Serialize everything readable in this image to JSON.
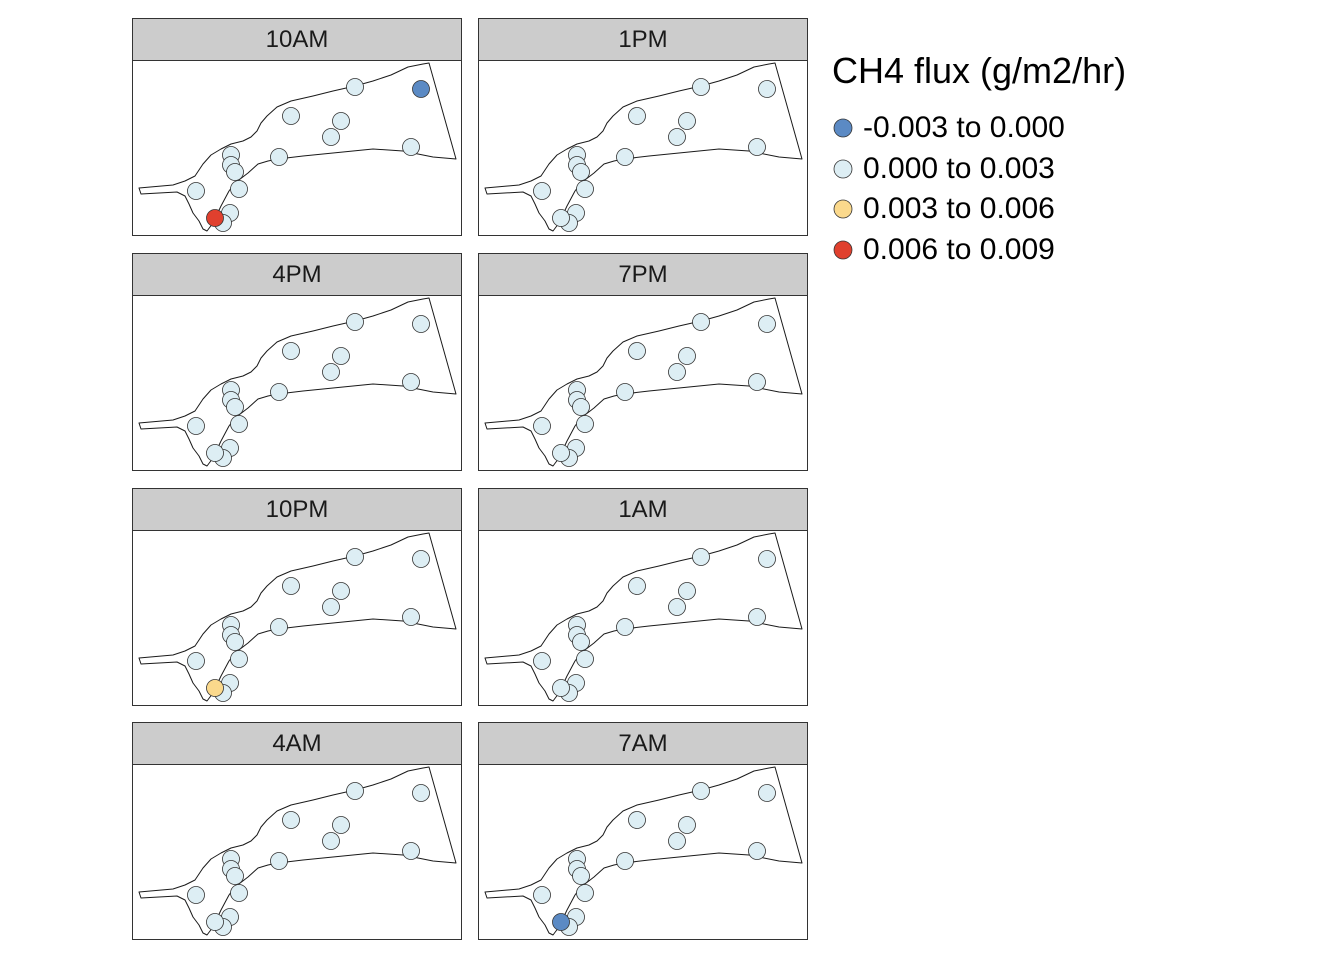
{
  "legend": {
    "title": "CH4 flux (g/m2/hr)",
    "classes": [
      {
        "label": "-0.003 to 0.000",
        "color": "#5b8ac4"
      },
      {
        "label": "0.000 to 0.003",
        "color": "#ddeef4"
      },
      {
        "label": "0.003 to 0.006",
        "color": "#fbd98c"
      },
      {
        "label": "0.006 to 0.009",
        "color": "#e0402e"
      }
    ]
  },
  "point_style": {
    "stroke": "#333333",
    "outline": "#333333"
  },
  "panels": [
    {
      "label": "10AM",
      "classes": [
        1,
        1,
        1,
        1,
        1,
        1,
        1,
        1,
        1,
        1,
        1,
        1,
        1,
        0,
        3
      ]
    },
    {
      "label": "1PM",
      "classes": [
        1,
        1,
        1,
        1,
        1,
        1,
        1,
        1,
        1,
        1,
        1,
        1,
        1,
        1,
        1
      ]
    },
    {
      "label": "4PM",
      "classes": [
        1,
        1,
        1,
        1,
        1,
        1,
        1,
        1,
        1,
        1,
        1,
        1,
        1,
        1,
        1
      ]
    },
    {
      "label": "7PM",
      "classes": [
        1,
        1,
        1,
        1,
        1,
        1,
        1,
        1,
        1,
        1,
        1,
        1,
        1,
        1,
        1
      ]
    },
    {
      "label": "10PM",
      "classes": [
        1,
        1,
        1,
        1,
        1,
        1,
        1,
        1,
        1,
        1,
        1,
        1,
        1,
        1,
        2
      ]
    },
    {
      "label": "1AM",
      "classes": [
        1,
        1,
        1,
        1,
        1,
        1,
        1,
        1,
        1,
        1,
        1,
        1,
        1,
        1,
        1
      ]
    },
    {
      "label": "4AM",
      "classes": [
        1,
        1,
        1,
        1,
        1,
        1,
        1,
        1,
        1,
        1,
        1,
        1,
        1,
        1,
        1
      ]
    },
    {
      "label": "7AM",
      "classes": [
        1,
        1,
        1,
        1,
        1,
        1,
        1,
        1,
        1,
        1,
        1,
        1,
        1,
        1,
        0
      ]
    }
  ]
}
